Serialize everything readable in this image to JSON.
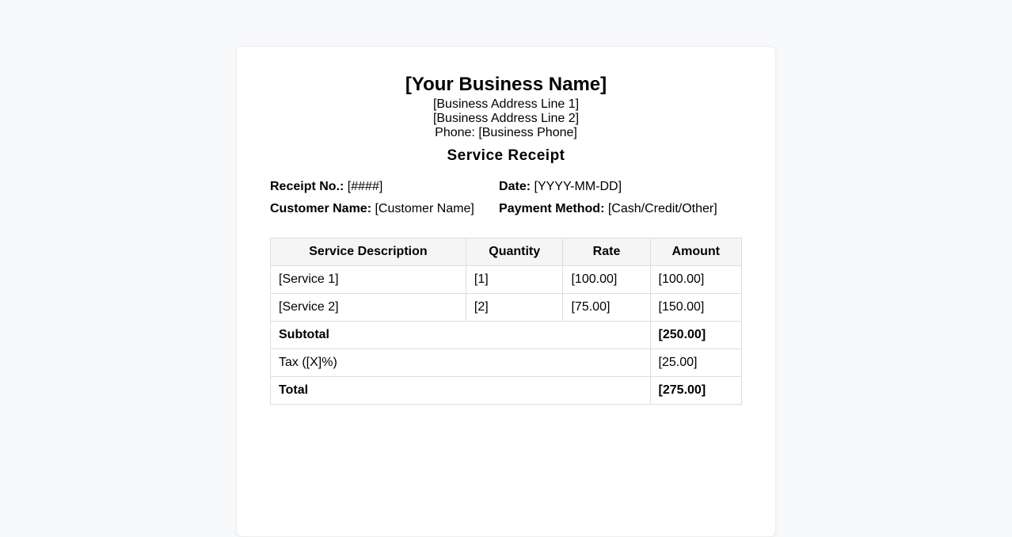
{
  "page": {
    "background_color": "#f8f9fa",
    "card_background_color": "#ffffff"
  },
  "header": {
    "business_name": "[Your Business Name]",
    "address_line1": "[Business Address Line 1]",
    "address_line2": "[Business Address Line 2]",
    "phone_line": "Phone: [Business Phone]",
    "receipt_title": "Service Receipt"
  },
  "details": {
    "receipt_no_label": "Receipt No.:",
    "receipt_no_value": "[####]",
    "date_label": "Date:",
    "date_value": "[YYYY-MM-DD]",
    "customer_name_label": "Customer Name:",
    "customer_name_value": "[Customer Name]",
    "payment_method_label": "Payment Method:",
    "payment_method_value": "[Cash/Credit/Other]"
  },
  "table": {
    "headers": [
      "Service Description",
      "Quantity",
      "Rate",
      "Amount"
    ],
    "rows": [
      {
        "description": "[Service 1]",
        "quantity": "[1]",
        "rate": "[100.00]",
        "amount": "[100.00]"
      },
      {
        "description": "[Service 2]",
        "quantity": "[2]",
        "rate": "[75.00]",
        "amount": "[150.00]"
      }
    ],
    "summary": [
      {
        "label": "Subtotal",
        "amount": "[250.00]",
        "bold": true
      },
      {
        "label": "Tax ([X]%)",
        "amount": "[25.00]",
        "bold": false
      },
      {
        "label": "Total",
        "amount": "[275.00]",
        "bold": true
      }
    ]
  },
  "colors": {
    "table_border": "#dddddd",
    "table_header_background": "#f5f5f5",
    "text": "#000000"
  }
}
